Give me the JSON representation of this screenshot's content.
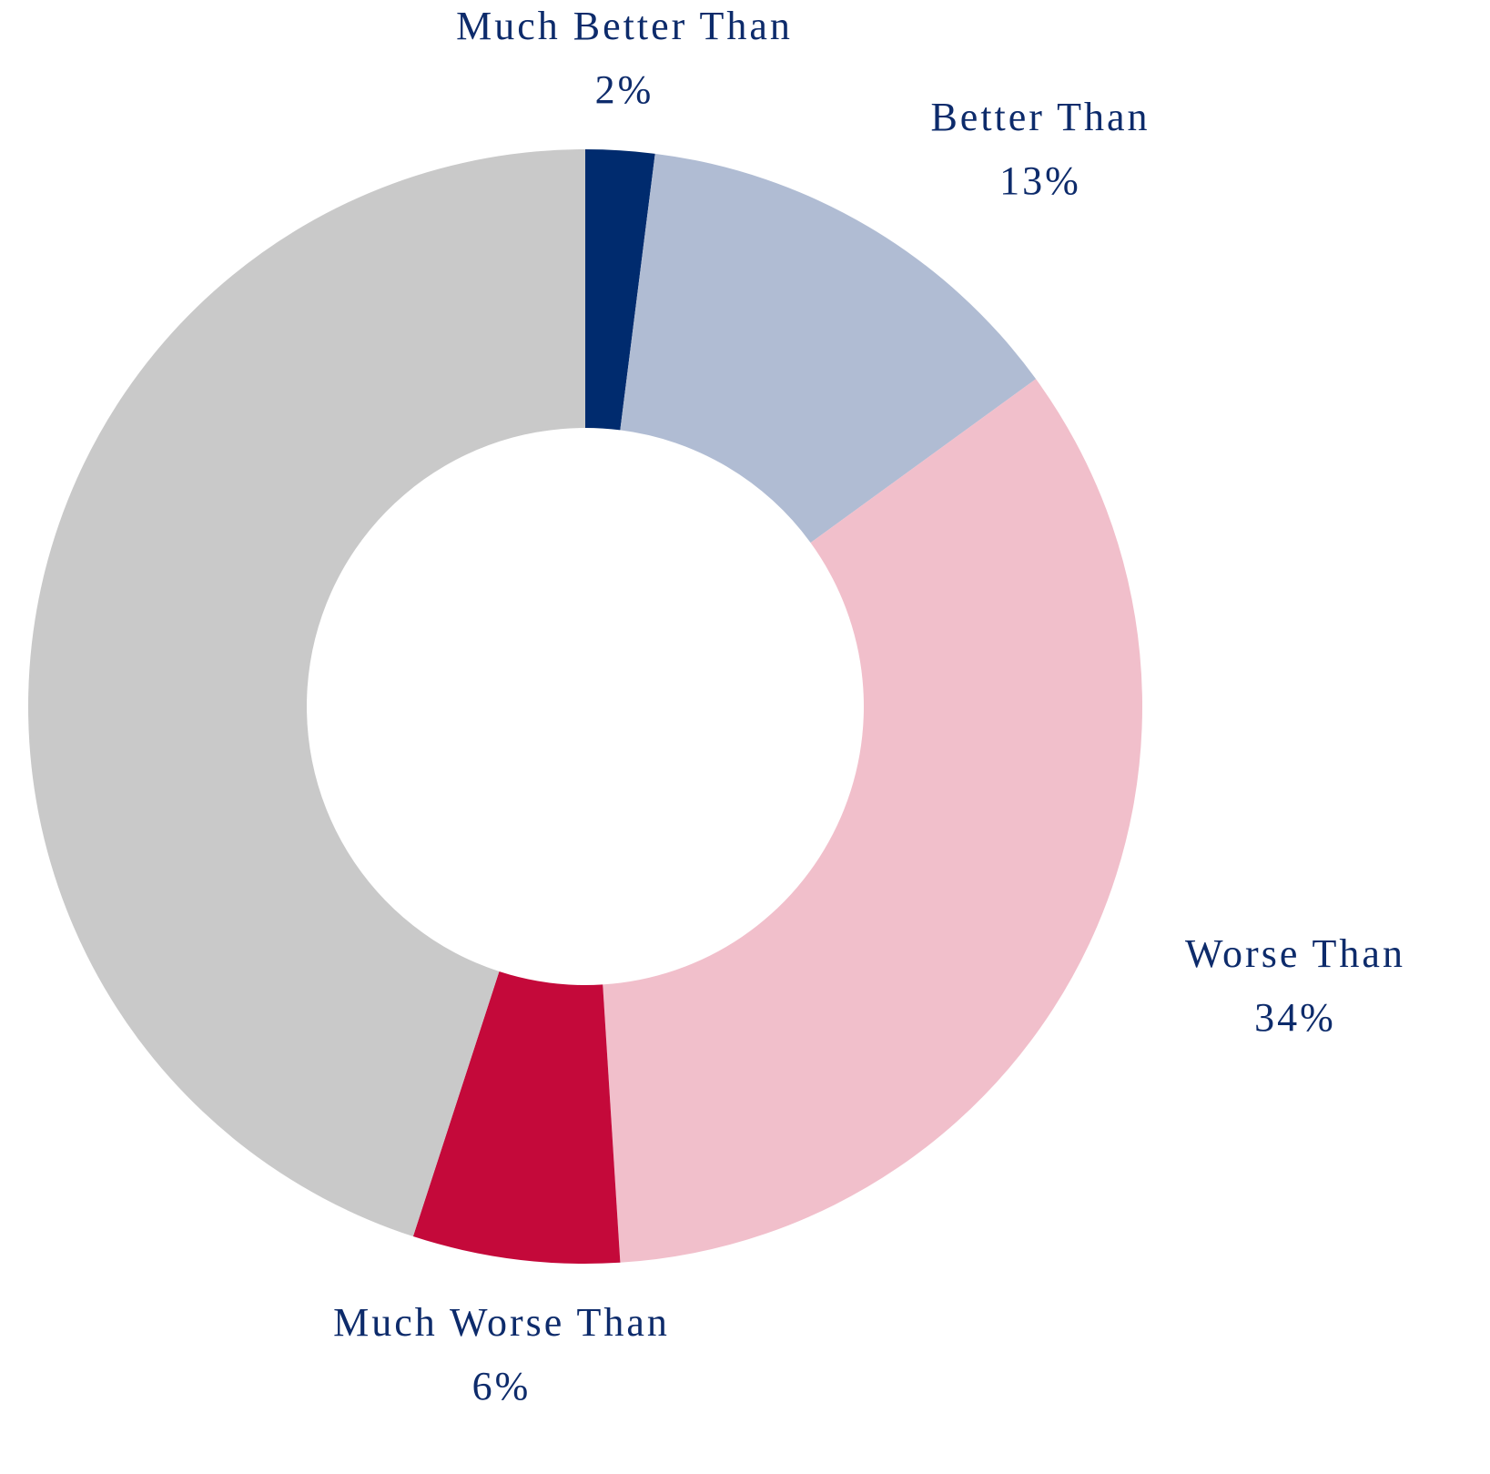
{
  "chart_data": {
    "type": "donut",
    "categories": [
      "Much Better Than",
      "Better Than",
      "Worse Than",
      "Much Worse Than",
      null
    ],
    "values": [
      2,
      13,
      34,
      6,
      45
    ],
    "value_labels": [
      "2%",
      "13%",
      "34%",
      "6%",
      null
    ],
    "colors": [
      "#002b6e",
      "#b0bcd3",
      "#f1bfcb",
      "#c4093a",
      "#c9c9c9"
    ]
  }
}
